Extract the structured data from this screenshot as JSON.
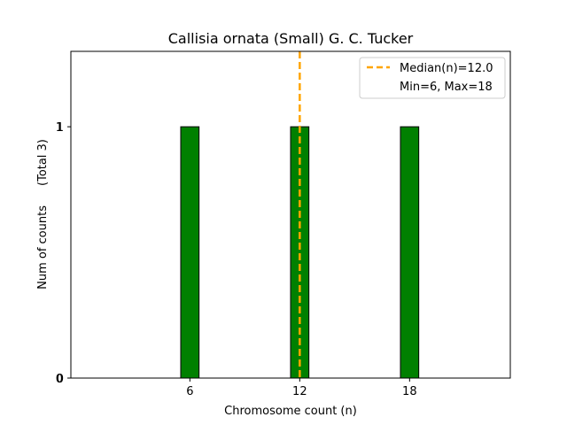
{
  "chart_data": {
    "type": "bar",
    "title": "Callisia ornata (Small) G. C. Tucker",
    "xlabel": "Chromosome count (n)",
    "ylabel": "Num of counts",
    "ylabel_total": "(Total 3)",
    "x": [
      6,
      12,
      18
    ],
    "values": [
      1,
      1,
      1
    ],
    "xticks": [
      6,
      12,
      18
    ],
    "yticks": [
      0,
      1
    ],
    "xlim": [
      -0.5,
      23.5
    ],
    "ylim": [
      0,
      1.3
    ],
    "bar_width": 1,
    "bar_baseline_extent": [
      0,
      21.5
    ],
    "grid": false,
    "legend_position": "top-right",
    "median": {
      "value": 12,
      "label": "Median(n)=12.0",
      "color": "#FFA500"
    },
    "range_label": "Min=6, Max=18",
    "colors": {
      "bar_fill": "#008000",
      "bar_edge": "#000000",
      "median_line": "#FFA500"
    }
  }
}
